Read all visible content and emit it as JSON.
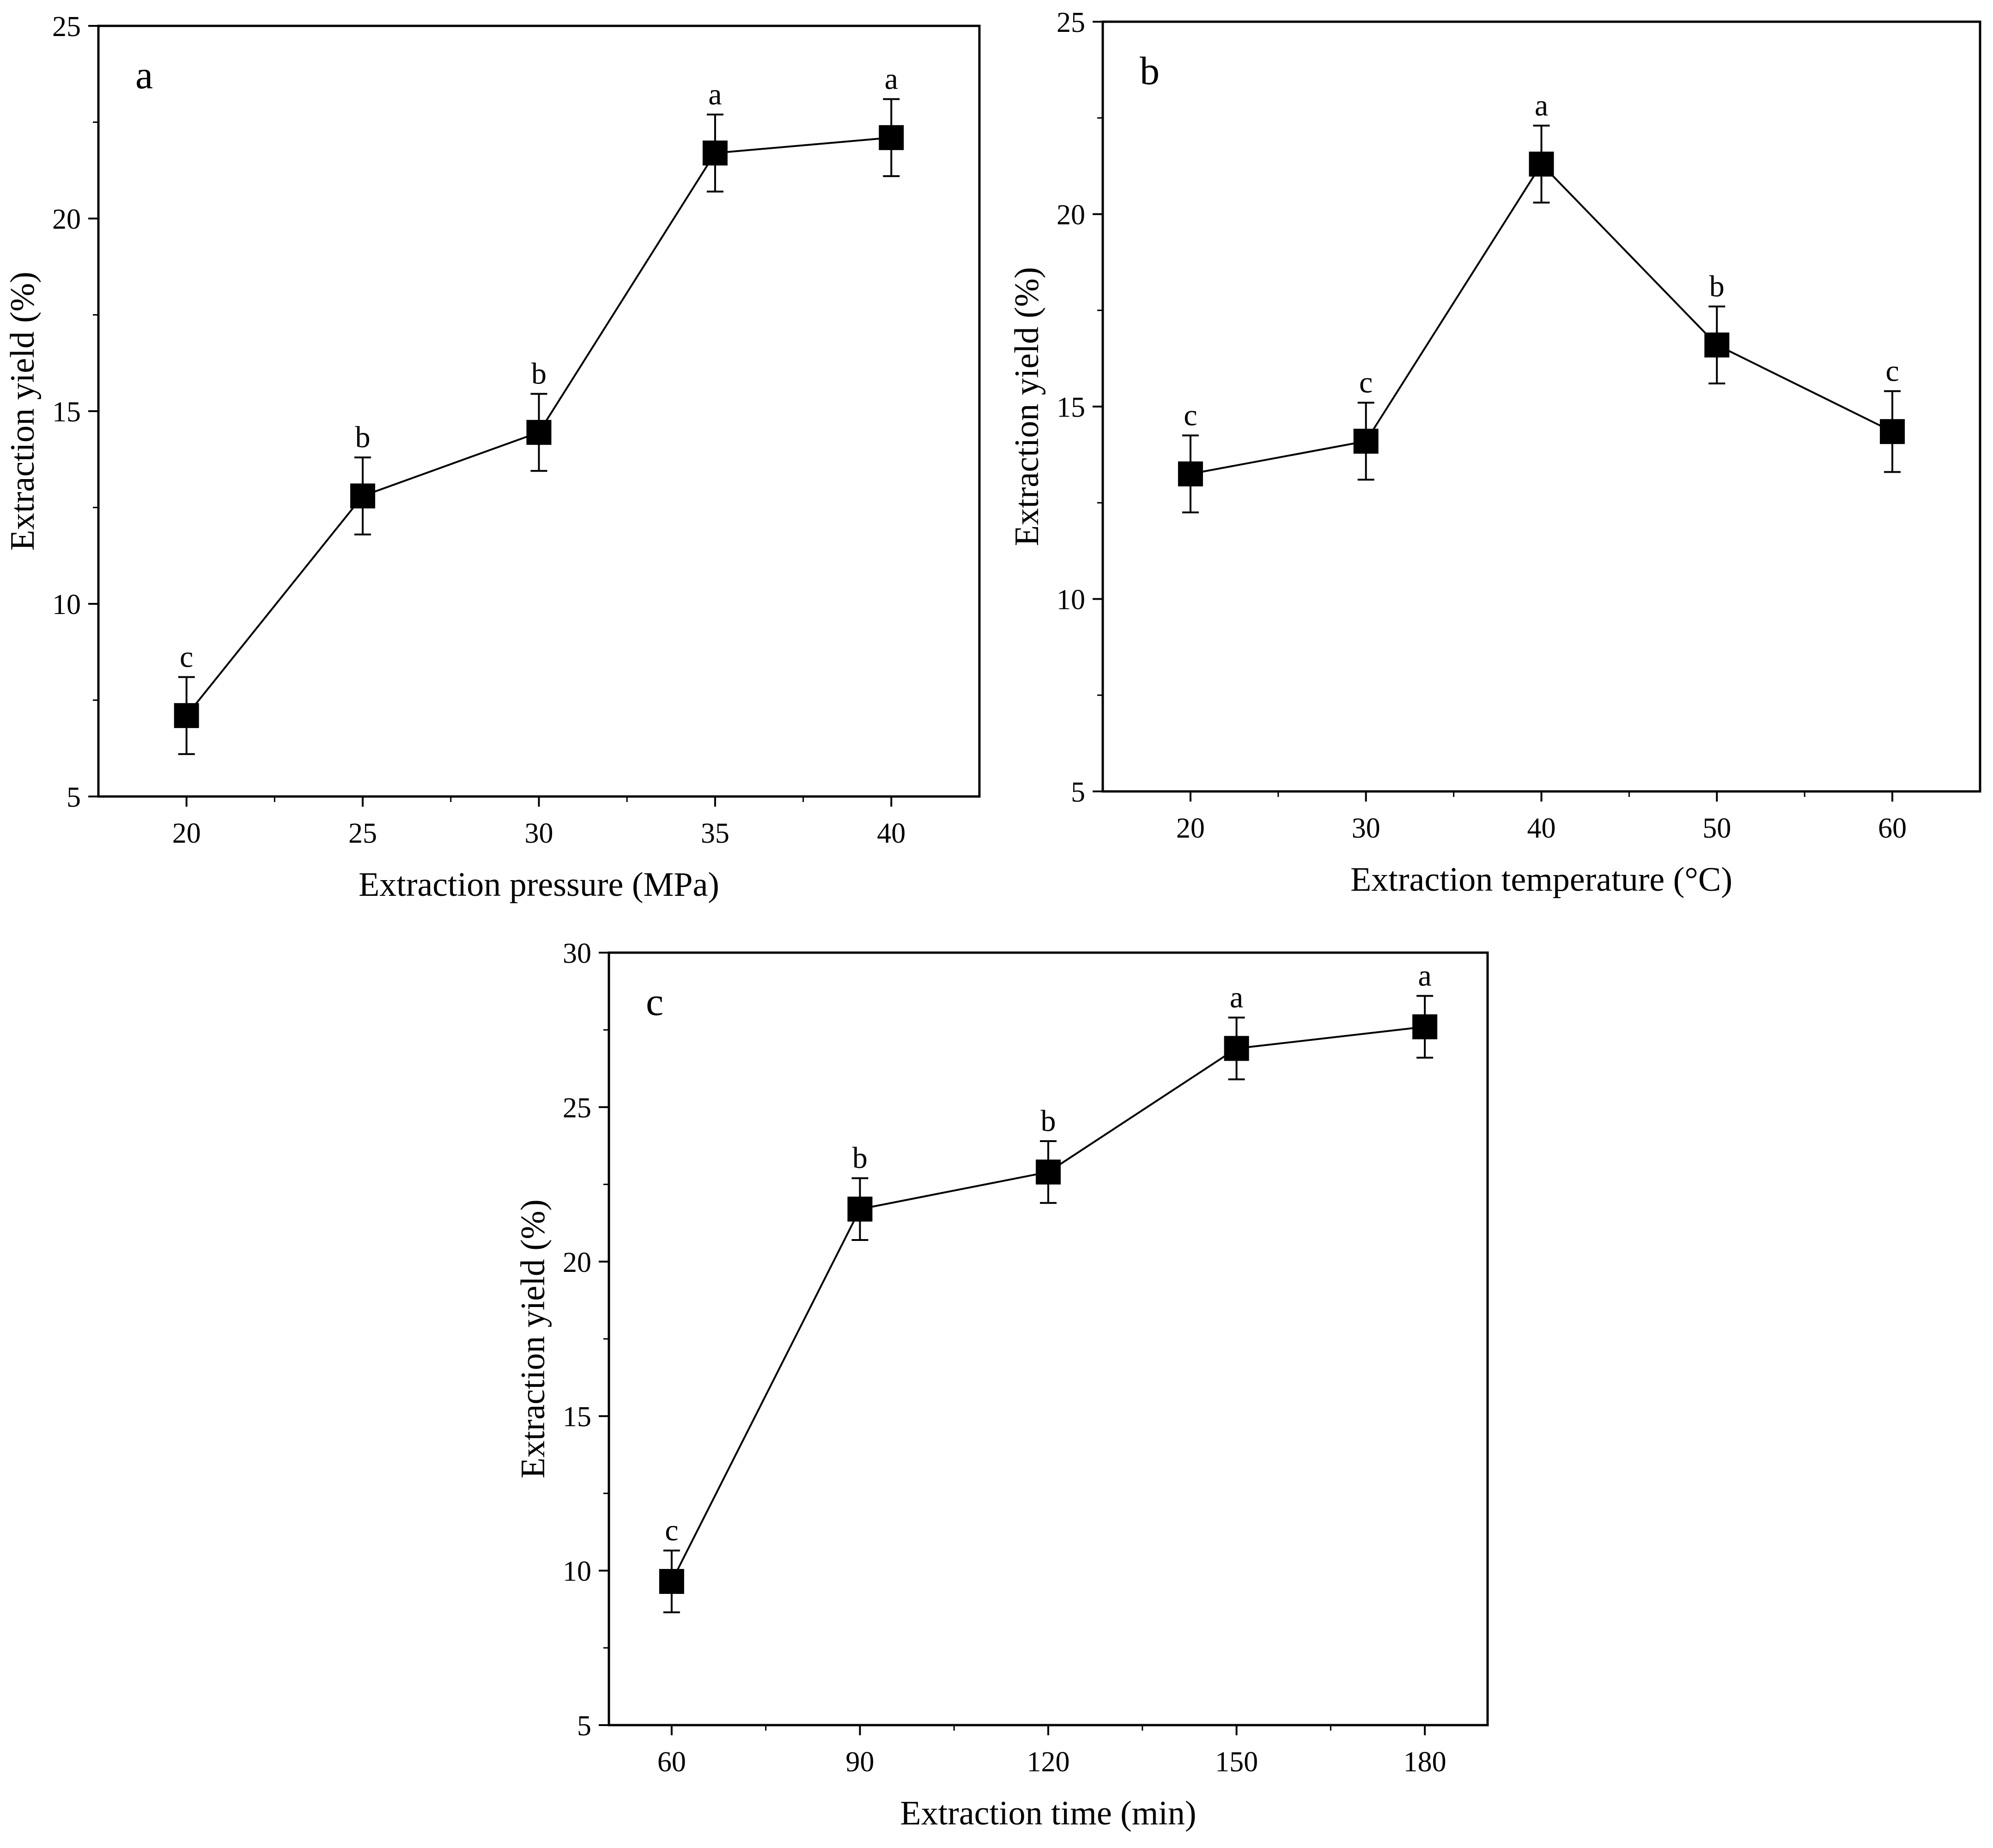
{
  "figure": {
    "colors": {
      "line": "#000000",
      "marker": "#000000",
      "frame": "#000000",
      "background": "#ffffff"
    }
  },
  "chart_data": [
    {
      "panel_label": "a",
      "type": "line",
      "xlabel": "Extraction pressure (MPa)",
      "ylabel": "Extraction yield (%)",
      "x": [
        20,
        25,
        30,
        35,
        40
      ],
      "x_tick_labels": [
        "20",
        "25",
        "30",
        "35",
        "40"
      ],
      "xlim": [
        17.5,
        42.5
      ],
      "y": [
        7.1,
        12.8,
        14.45,
        21.7,
        22.1
      ],
      "yerr": [
        1.0,
        1.0,
        1.0,
        1.0,
        1.0
      ],
      "significance": [
        "c",
        "b",
        "b",
        "a",
        "a"
      ],
      "ylim": [
        5,
        25
      ],
      "y_ticks": [
        5,
        10,
        15,
        20,
        25
      ],
      "y_tick_labels": [
        "5",
        "10",
        "15",
        "20",
        "25"
      ]
    },
    {
      "panel_label": "b",
      "type": "line",
      "xlabel": "Extraction temperature (°C)",
      "ylabel": "Extraction yield (%)",
      "x": [
        20,
        30,
        40,
        50,
        60
      ],
      "x_tick_labels": [
        "20",
        "30",
        "40",
        "50",
        "60"
      ],
      "xlim": [
        15,
        65
      ],
      "y": [
        13.25,
        14.1,
        21.3,
        16.6,
        14.35
      ],
      "yerr": [
        1.0,
        1.0,
        1.0,
        1.0,
        1.05
      ],
      "significance": [
        "c",
        "c",
        "a",
        "b",
        "c"
      ],
      "ylim": [
        5,
        25
      ],
      "y_ticks": [
        5,
        10,
        15,
        20,
        25
      ],
      "y_tick_labels": [
        "5",
        "10",
        "15",
        "20",
        "25"
      ]
    },
    {
      "panel_label": "c",
      "type": "line",
      "xlabel": "Extraction time (min)",
      "ylabel": "Extraction yield (%)",
      "x": [
        60,
        90,
        120,
        150,
        180
      ],
      "x_tick_labels": [
        "60",
        "90",
        "120",
        "150",
        "180"
      ],
      "xlim": [
        50,
        190
      ],
      "y": [
        9.65,
        21.7,
        22.9,
        26.9,
        27.6
      ],
      "yerr": [
        1.0,
        1.0,
        1.0,
        1.0,
        1.0
      ],
      "significance": [
        "c",
        "b",
        "b",
        "a",
        "a"
      ],
      "ylim": [
        5,
        30
      ],
      "y_ticks": [
        5,
        10,
        15,
        20,
        25,
        30
      ],
      "y_tick_labels": [
        "5",
        "10",
        "15",
        "20",
        "25",
        "30"
      ]
    }
  ]
}
